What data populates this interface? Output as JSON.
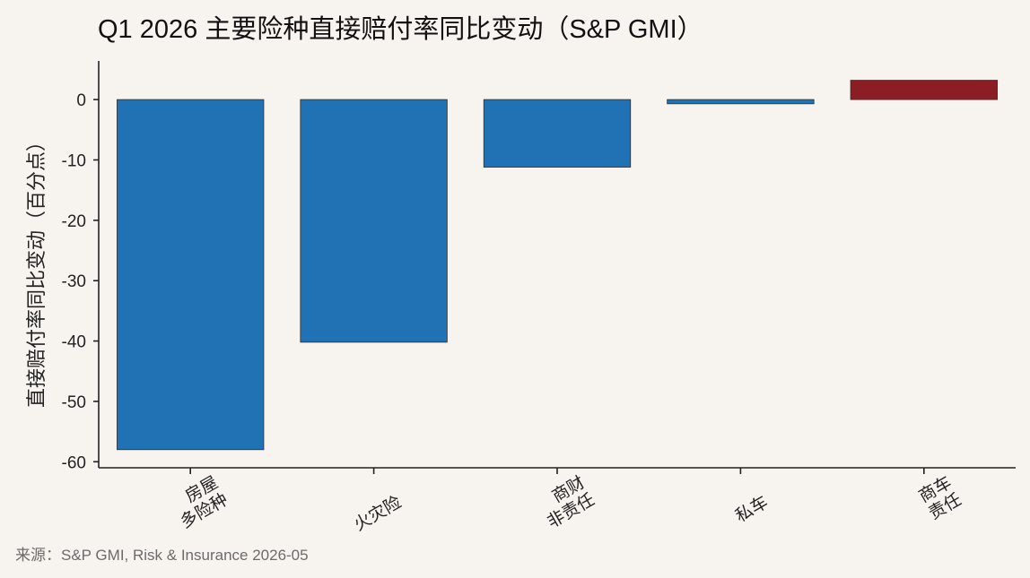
{
  "chart_data": {
    "type": "bar",
    "title": "Q1 2026 主要险种直接赔付率同比变动（S&P GMI）",
    "ylabel": "直接赔付率同比变动（百分点）",
    "xlabel": "",
    "categories": [
      "房屋\n多险种",
      "火灾险",
      "商财\n非责任",
      "私车",
      "商车\n责任"
    ],
    "values": [
      -58.0,
      -40.2,
      -11.2,
      -0.7,
      3.2
    ],
    "ylim": [
      -61,
      6.4
    ],
    "yticks": [
      0,
      -10,
      -20,
      -30,
      -40,
      -50,
      -60
    ],
    "ytick_labels": [
      "0",
      "-10",
      "-20",
      "-30",
      "-40",
      "-50",
      "-60"
    ],
    "grid": false,
    "colors": {
      "negative": "#2171b5",
      "positive": "#8b1e24"
    }
  },
  "footer": {
    "source": "来源：S&P GMI, Risk & Insurance 2026-05"
  }
}
